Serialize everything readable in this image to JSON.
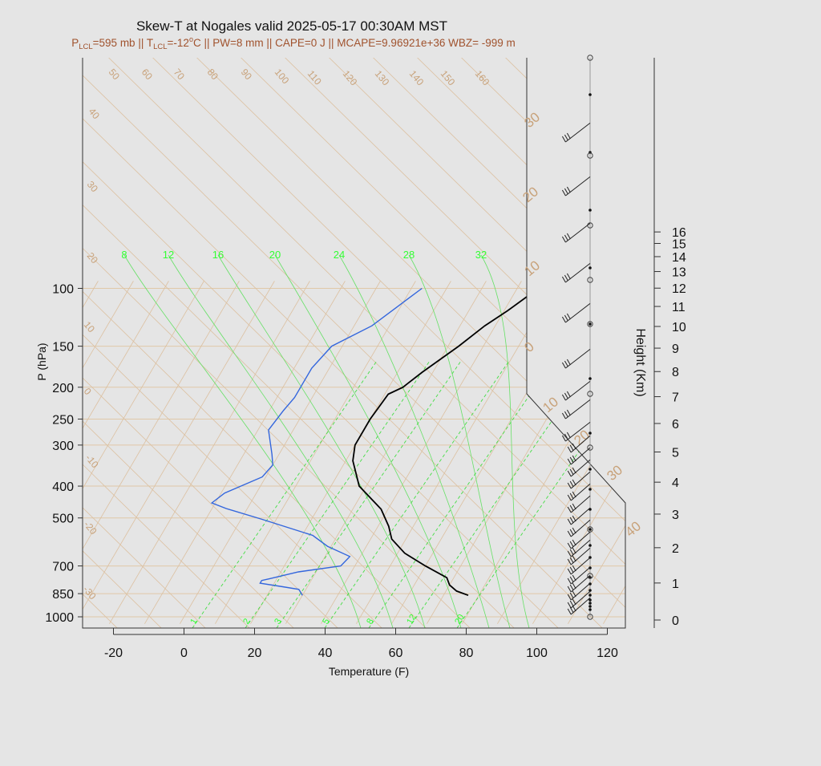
{
  "chart_data": {
    "type": "skew-t",
    "title": "Skew-T at Nogales valid 2025-05-17 00:30AM MST",
    "subtitle_parts": {
      "p_lcl_label": "P",
      "p_lcl_sub": "LCL",
      "p_lcl_value": "=595 mb || ",
      "t_lcl_label": "T",
      "t_lcl_sub": "LCL",
      "t_lcl_value": "=-12",
      "t_lcl_deg": "o",
      "rest": "C || PW=8 mm || CAPE=0 J || MCAPE=9.96921e+36 WBZ= -999 m"
    },
    "xlabel": "Temperature (F)",
    "ylabel": "P (hPa)",
    "y2label": "Height (Km)",
    "xlim": [
      -28,
      125
    ],
    "x_ticks": [
      "-20",
      "0",
      "20",
      "40",
      "60",
      "80",
      "100",
      "120"
    ],
    "y_ticks": [
      "100",
      "150",
      "200",
      "250",
      "300",
      "400",
      "500",
      "700",
      "850",
      "1000"
    ],
    "height_ticks": [
      "0",
      "1",
      "2",
      "3",
      "4",
      "5",
      "6",
      "7",
      "8",
      "9",
      "10",
      "11",
      "12",
      "13",
      "14",
      "15",
      "16"
    ],
    "isotherm_labels": [
      "50",
      "60",
      "70",
      "80",
      "90",
      "100",
      "110",
      "120",
      "130",
      "140",
      "150",
      "160"
    ],
    "dry_adiabat_labels": [
      "40",
      "30",
      "20",
      "10",
      "0",
      "-10",
      "-20",
      "-30"
    ],
    "right_side_labels": [
      "30",
      "20",
      "10",
      "0",
      "10",
      "20",
      "30",
      "40"
    ],
    "mixing_ratio_top_labels": [
      "8",
      "12",
      "16",
      "20",
      "24",
      "28",
      "32"
    ],
    "mixing_ratio_bottom_labels": [
      "1",
      "2",
      "3",
      "5",
      "8",
      "12",
      "20"
    ],
    "series": [
      {
        "role": "temperature",
        "color": "#000000",
        "points": [
          [
            77,
            860
          ],
          [
            73,
            835
          ],
          [
            70,
            800
          ],
          [
            68,
            760
          ],
          [
            60,
            700
          ],
          [
            52,
            640
          ],
          [
            46,
            580
          ],
          [
            43,
            530
          ],
          [
            38,
            470
          ],
          [
            28,
            400
          ],
          [
            22,
            335
          ],
          [
            20,
            300
          ],
          [
            20,
            250
          ],
          [
            21,
            210
          ],
          [
            24,
            200
          ],
          [
            27,
            180
          ],
          [
            33,
            150
          ],
          [
            37,
            130
          ],
          [
            41,
            117
          ],
          [
            46,
            100
          ]
        ]
      },
      {
        "role": "dewpoint",
        "color": "#3366dd",
        "points": [
          [
            30,
            860
          ],
          [
            28,
            825
          ],
          [
            23,
            810
          ],
          [
            16,
            790
          ],
          [
            16,
            775
          ],
          [
            18,
            765
          ],
          [
            25,
            730
          ],
          [
            36,
            700
          ],
          [
            37,
            655
          ],
          [
            29,
            610
          ],
          [
            23,
            565
          ],
          [
            6,
            505
          ],
          [
            -6,
            468
          ],
          [
            -11,
            450
          ],
          [
            -9,
            420
          ],
          [
            -1,
            375
          ],
          [
            0,
            345
          ],
          [
            -2,
            320
          ],
          [
            -7,
            270
          ],
          [
            -6,
            235
          ],
          [
            -5,
            215
          ],
          [
            -5,
            200
          ],
          [
            -5,
            175
          ],
          [
            -3,
            150
          ],
          [
            5,
            130
          ],
          [
            13,
            100
          ]
        ]
      }
    ]
  }
}
